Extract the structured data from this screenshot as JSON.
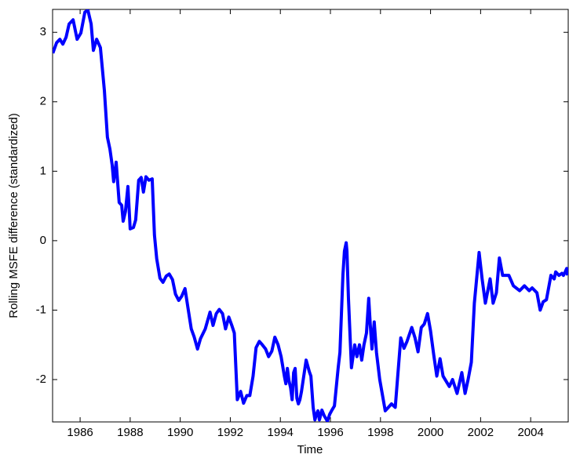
{
  "chart_data": {
    "type": "line",
    "x_label": "Time",
    "y_label": "Rolling MSFE difference (standardized)",
    "color": "#0000ff",
    "xlim": [
      1984.9,
      2005.5
    ],
    "ylim": [
      -2.61,
      3.33
    ],
    "xticks": [
      1986,
      1988,
      1990,
      1992,
      1994,
      1996,
      1998,
      2000,
      2002,
      2004
    ],
    "yticks": [
      -2,
      -1,
      0,
      1,
      2,
      3
    ],
    "x": [
      1984.91,
      1985.06,
      1985.19,
      1985.31,
      1985.44,
      1985.56,
      1985.72,
      1985.88,
      1986.03,
      1986.19,
      1986.31,
      1986.44,
      1986.53,
      1986.66,
      1986.81,
      1986.97,
      1987.09,
      1987.19,
      1987.28,
      1987.34,
      1987.44,
      1987.56,
      1987.66,
      1987.72,
      1987.81,
      1987.91,
      1988.0,
      1988.13,
      1988.22,
      1988.34,
      1988.44,
      1988.53,
      1988.63,
      1988.75,
      1988.88,
      1988.97,
      1989.06,
      1989.19,
      1989.31,
      1989.44,
      1989.56,
      1989.69,
      1989.81,
      1989.94,
      1990.06,
      1990.19,
      1990.31,
      1990.44,
      1990.56,
      1990.69,
      1990.81,
      1991.0,
      1991.19,
      1991.31,
      1991.44,
      1991.56,
      1991.69,
      1991.81,
      1991.94,
      1992.06,
      1992.16,
      1992.28,
      1992.41,
      1992.53,
      1992.66,
      1992.78,
      1992.91,
      1993.03,
      1993.16,
      1993.28,
      1993.41,
      1993.53,
      1993.66,
      1993.78,
      1993.91,
      1994.03,
      1994.16,
      1994.22,
      1994.28,
      1994.34,
      1994.41,
      1994.47,
      1994.53,
      1994.59,
      1994.66,
      1994.72,
      1994.78,
      1994.84,
      1994.91,
      1995.03,
      1995.16,
      1995.22,
      1995.31,
      1995.38,
      1995.44,
      1995.5,
      1995.56,
      1995.66,
      1995.75,
      1995.88,
      1995.97,
      1996.06,
      1996.16,
      1996.22,
      1996.31,
      1996.38,
      1996.44,
      1996.5,
      1996.56,
      1996.63,
      1996.66,
      1996.72,
      1996.84,
      1996.97,
      1997.06,
      1997.16,
      1997.25,
      1997.34,
      1997.44,
      1997.53,
      1997.59,
      1997.66,
      1997.75,
      1997.84,
      1997.97,
      1998.19,
      1998.44,
      1998.59,
      1998.81,
      1998.94,
      1999.06,
      1999.25,
      1999.38,
      1999.5,
      1999.63,
      1999.75,
      1999.88,
      2000.0,
      2000.13,
      2000.25,
      2000.38,
      2000.5,
      2000.75,
      2000.88,
      2001.06,
      2001.25,
      2001.38,
      2001.5,
      2001.63,
      2001.75,
      2001.94,
      2002.06,
      2002.19,
      2002.38,
      2002.5,
      2002.63,
      2002.75,
      2002.88,
      2003.13,
      2003.31,
      2003.56,
      2003.75,
      2003.94,
      2004.06,
      2004.25,
      2004.38,
      2004.5,
      2004.63,
      2004.81,
      2004.94,
      2005.0,
      2005.13,
      2005.25,
      2005.31,
      2005.38,
      2005.44,
      2005.47
    ],
    "values": [
      2.7,
      2.85,
      2.9,
      2.83,
      2.93,
      3.12,
      3.18,
      2.9,
      2.99,
      3.29,
      3.32,
      3.12,
      2.74,
      2.9,
      2.78,
      2.16,
      1.49,
      1.32,
      1.09,
      0.85,
      1.13,
      0.55,
      0.51,
      0.28,
      0.42,
      0.78,
      0.17,
      0.19,
      0.3,
      0.87,
      0.91,
      0.7,
      0.92,
      0.87,
      0.89,
      0.08,
      -0.26,
      -0.54,
      -0.6,
      -0.51,
      -0.48,
      -0.56,
      -0.77,
      -0.86,
      -0.8,
      -0.69,
      -0.97,
      -1.27,
      -1.39,
      -1.56,
      -1.41,
      -1.27,
      -1.03,
      -1.22,
      -1.05,
      -0.99,
      -1.05,
      -1.27,
      -1.1,
      -1.22,
      -1.33,
      -2.29,
      -2.17,
      -2.34,
      -2.23,
      -2.23,
      -1.95,
      -1.54,
      -1.45,
      -1.5,
      -1.56,
      -1.67,
      -1.59,
      -1.39,
      -1.5,
      -1.67,
      -1.95,
      -2.06,
      -1.84,
      -2.01,
      -2.12,
      -2.29,
      -1.9,
      -1.84,
      -2.27,
      -2.35,
      -2.29,
      -2.18,
      -2.01,
      -1.72,
      -1.89,
      -1.95,
      -2.4,
      -2.58,
      -2.5,
      -2.45,
      -2.58,
      -2.44,
      -2.52,
      -2.6,
      -2.5,
      -2.44,
      -2.38,
      -2.16,
      -1.83,
      -1.61,
      -1.05,
      -0.49,
      -0.15,
      -0.03,
      -0.15,
      -0.83,
      -1.83,
      -1.5,
      -1.67,
      -1.5,
      -1.72,
      -1.5,
      -1.33,
      -0.83,
      -1.2,
      -1.56,
      -1.17,
      -1.61,
      -2.0,
      -2.45,
      -2.35,
      -2.4,
      -1.4,
      -1.55,
      -1.45,
      -1.25,
      -1.4,
      -1.6,
      -1.25,
      -1.2,
      -1.05,
      -1.3,
      -1.65,
      -1.95,
      -1.7,
      -1.95,
      -2.1,
      -2.0,
      -2.2,
      -1.9,
      -2.2,
      -2.0,
      -1.75,
      -0.9,
      -0.17,
      -0.55,
      -0.9,
      -0.55,
      -0.9,
      -0.75,
      -0.25,
      -0.5,
      -0.5,
      -0.65,
      -0.72,
      -0.65,
      -0.72,
      -0.68,
      -0.75,
      -1.0,
      -0.88,
      -0.85,
      -0.5,
      -0.55,
      -0.45,
      -0.5,
      -0.47,
      -0.5,
      -0.45,
      -0.4,
      -0.5
    ]
  }
}
